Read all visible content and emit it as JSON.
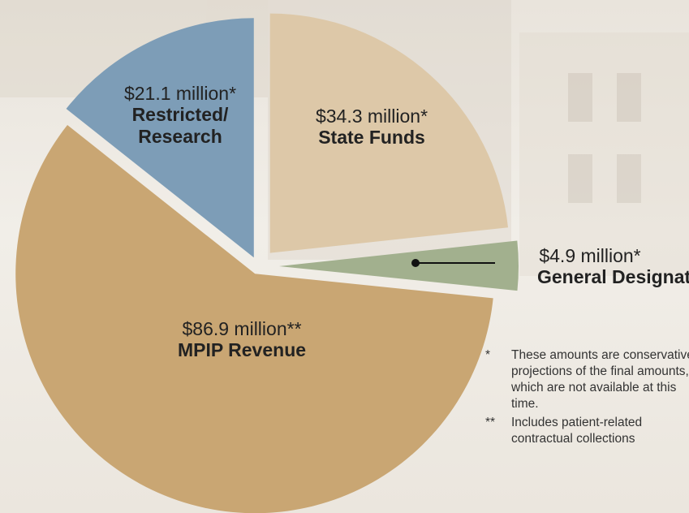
{
  "chart_data": {
    "type": "pie",
    "categories": [
      "State Funds",
      "General Designated",
      "MPIP Revenue",
      "Restricted/ Research"
    ],
    "values": [
      34.3,
      4.9,
      86.9,
      21.1
    ],
    "value_labels": [
      "$34.3 million*",
      "$4.9 million*",
      "$86.9 million**",
      "$21.1 million*"
    ],
    "colors": [
      "#ddc8a8",
      "#a2b08e",
      "#c9a673",
      "#7d9db7"
    ],
    "footnotes": [
      {
        "marker": "*",
        "text": "These amounts are conservative projections of the final amounts, which are not available at this time."
      },
      {
        "marker": "**",
        "text": "Includes patient-related contractual collections"
      }
    ]
  }
}
